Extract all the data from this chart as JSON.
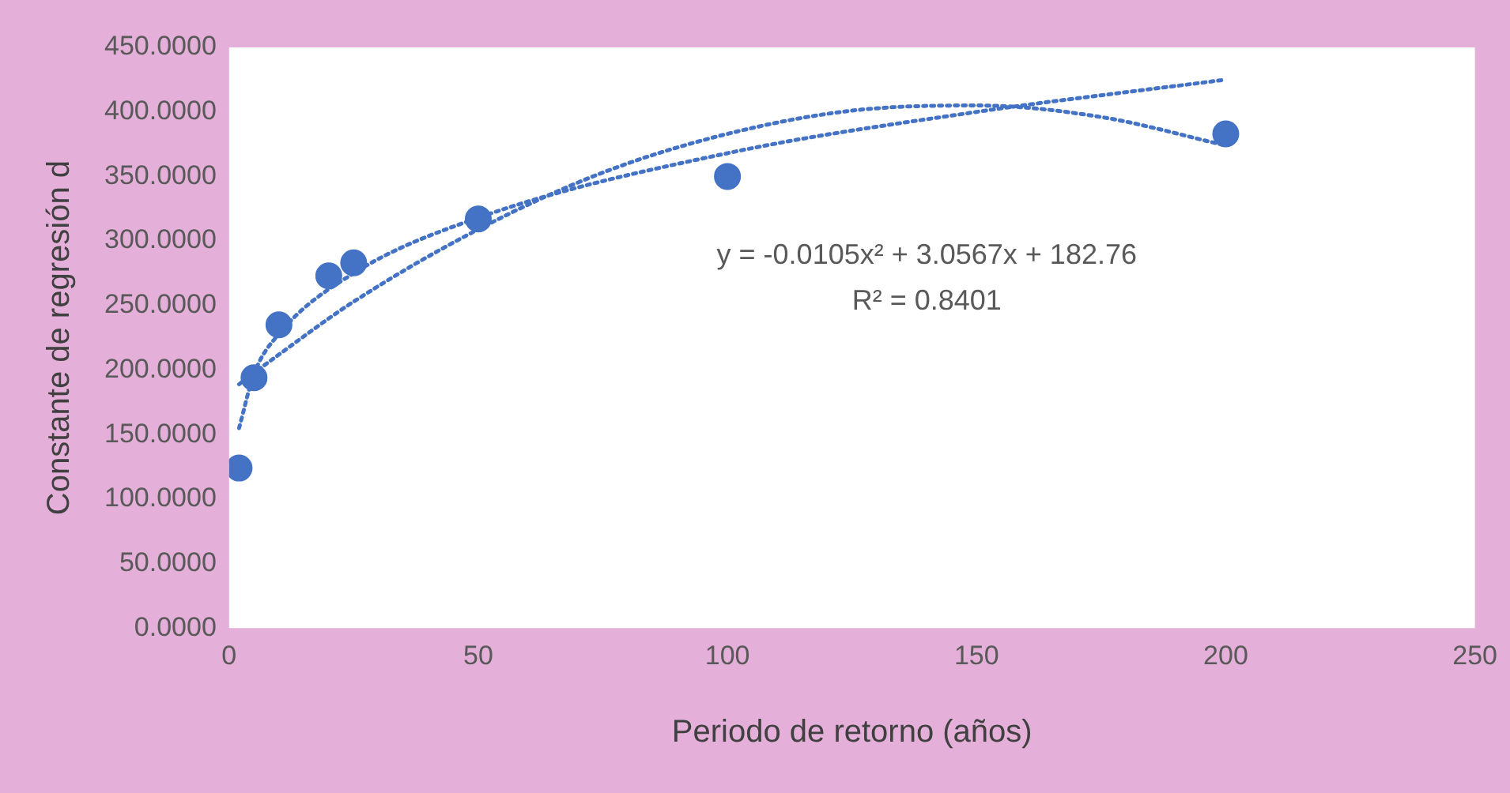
{
  "chart_data": {
    "type": "scatter",
    "xlabel": "Periodo de retorno (años)",
    "ylabel": "Constante de regresión d",
    "xlim": [
      0,
      250
    ],
    "xticks": [
      0,
      50,
      100,
      150,
      200,
      250
    ],
    "ylim": [
      0,
      450
    ],
    "yticks": [
      {
        "value": 0,
        "label": "0.0000"
      },
      {
        "value": 50,
        "label": "50.0000"
      },
      {
        "value": 100,
        "label": "100.0000"
      },
      {
        "value": 150,
        "label": "150.0000"
      },
      {
        "value": 200,
        "label": "200.0000"
      },
      {
        "value": 250,
        "label": "250.0000"
      },
      {
        "value": 300,
        "label": "300.0000"
      },
      {
        "value": 350,
        "label": "350.0000"
      },
      {
        "value": 400,
        "label": "400.0000"
      },
      {
        "value": 450,
        "label": "450.0000"
      }
    ],
    "series": [
      {
        "type": "scatter",
        "color": "#4472c4",
        "marker": "circle",
        "x": [
          2,
          5,
          10,
          20,
          25,
          50,
          100,
          200
        ],
        "values": [
          124,
          194,
          235,
          273,
          283,
          317,
          350,
          383
        ]
      },
      {
        "type": "line",
        "color": "#4472c4",
        "marker": "none",
        "line_style": "dotted",
        "x": [
          2,
          10,
          25,
          50,
          75,
          100,
          125,
          150,
          175,
          200
        ],
        "values": [
          189,
          212,
          253,
          309,
          353,
          383,
          401,
          405,
          396,
          374
        ]
      },
      {
        "type": "line",
        "color": "#4472c4",
        "marker": "none",
        "line_style": "dotted",
        "x": [
          2,
          5,
          10,
          25,
          50,
          100,
          150,
          200
        ],
        "values": [
          155,
          197,
          228,
          275,
          318,
          368,
          400,
          425
        ]
      }
    ],
    "annotations": [
      "y = -0.0105x² + 3.0567x + 182.76",
      "R² = 0.8401"
    ],
    "grid": false,
    "legend": false
  }
}
